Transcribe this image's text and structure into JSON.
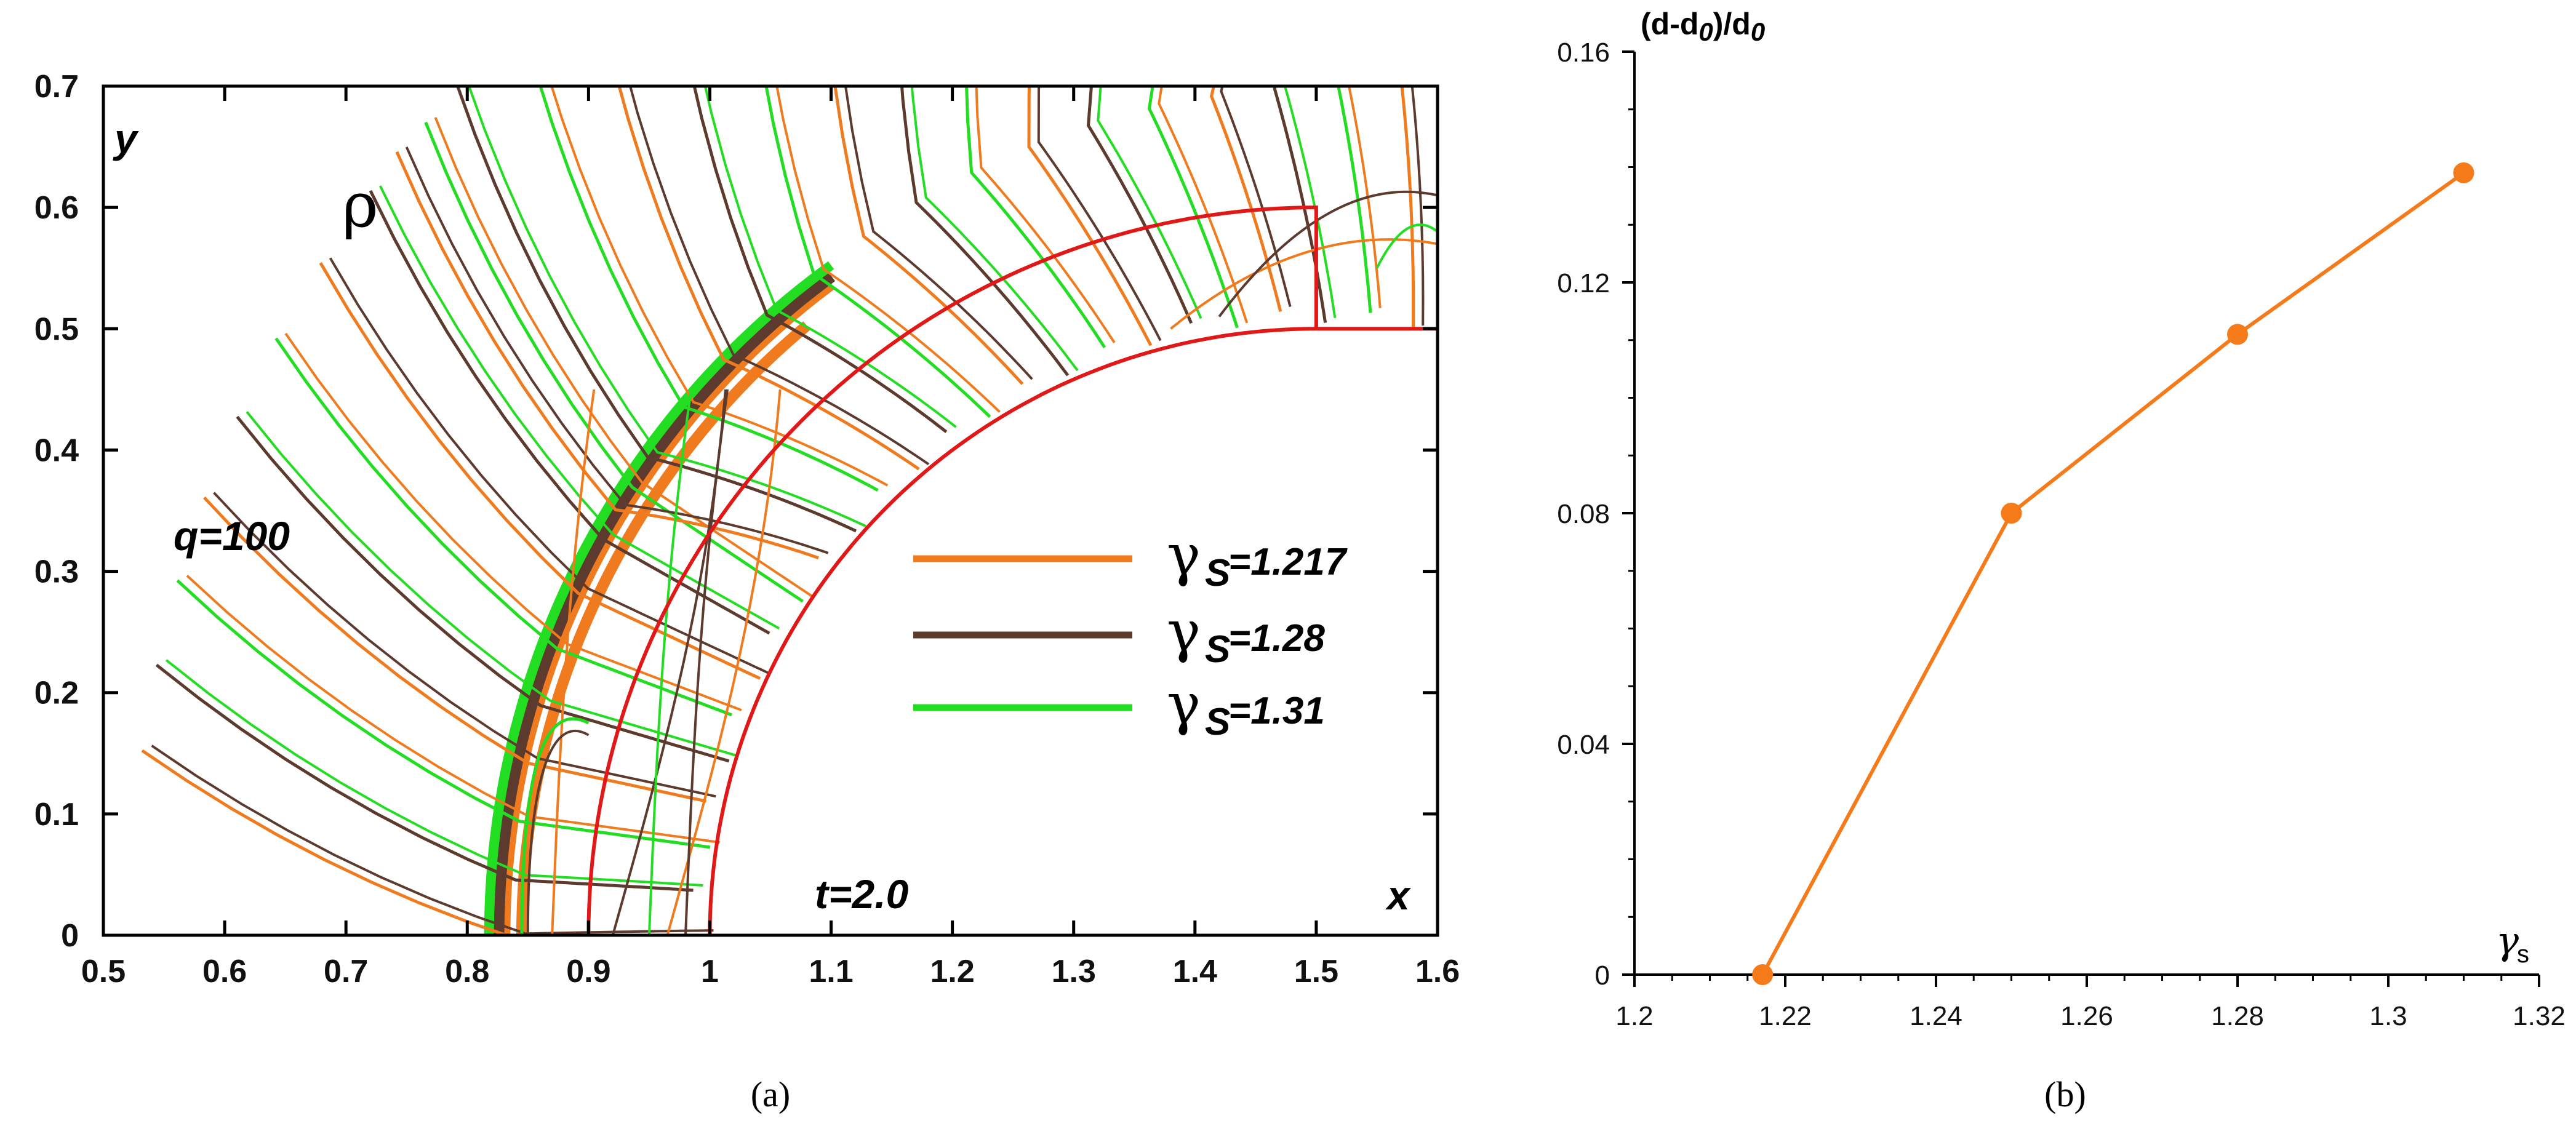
{
  "chart_data": [
    {
      "panel": "a",
      "type": "line",
      "subtype": "contour",
      "caption": "(a)",
      "xlim": [
        0.5,
        1.6
      ],
      "ylim": [
        0,
        0.7
      ],
      "xticks": [
        0.5,
        0.6,
        0.7,
        0.8,
        0.9,
        1,
        1.1,
        1.2,
        1.3,
        1.4,
        1.5,
        1.6
      ],
      "yticks": [
        0,
        0.1,
        0.2,
        0.3,
        0.4,
        0.5,
        0.6,
        0.7
      ],
      "xlabel": "x",
      "ylabel": "y",
      "variable_symbol": "ρ",
      "annotations": {
        "q": "q=100",
        "t": "t=2.0"
      },
      "legend_symbol": "γ",
      "legend_subscript": "S",
      "series": [
        {
          "name": "γS=1.217",
          "label_value": "=1.217",
          "color": "#F07A1E",
          "shock_x_at_y0": 0.83
        },
        {
          "name": "γS=1.28",
          "label_value": "=1.28",
          "color": "#5C3A2E",
          "shock_x_at_y0": 0.825
        },
        {
          "name": "γS=1.31",
          "label_value": "=1.31",
          "color": "#22DD22",
          "shock_x_at_y0": 0.818
        }
      ],
      "geometry_color": "#E01818",
      "body": {
        "center": [
          1.5,
          0
        ],
        "radius": 0.5,
        "x_min": 1.0,
        "flat_y": 0.5
      },
      "sonic_circle": {
        "center": [
          1.5,
          0
        ],
        "radius": 0.6,
        "x_min": 0.9,
        "cut_x": 1.5
      }
    },
    {
      "panel": "b",
      "type": "line",
      "caption": "(b)",
      "title": "",
      "xlabel": "γs",
      "xlabel_symbol": "γ",
      "xlabel_subscript": "s",
      "ylabel": "(d-d0)/d0",
      "ylabel_parts": [
        "(d-d",
        "0",
        ")/d",
        "0"
      ],
      "xlim": [
        1.2,
        1.32
      ],
      "ylim": [
        0,
        0.16
      ],
      "xticks": [
        "1.2",
        "1.22",
        "1.24",
        "1.26",
        "1.28",
        "1.3",
        "1.32"
      ],
      "yticks": [
        "0",
        "0.04",
        "0.08",
        "0.12",
        "0.16"
      ],
      "series": [
        {
          "name": "(d-d0)/d0",
          "color": "#F57A1A",
          "x": [
            1.217,
            1.25,
            1.28,
            1.31
          ],
          "y": [
            0,
            0.08,
            0.111,
            0.139
          ]
        }
      ]
    }
  ]
}
